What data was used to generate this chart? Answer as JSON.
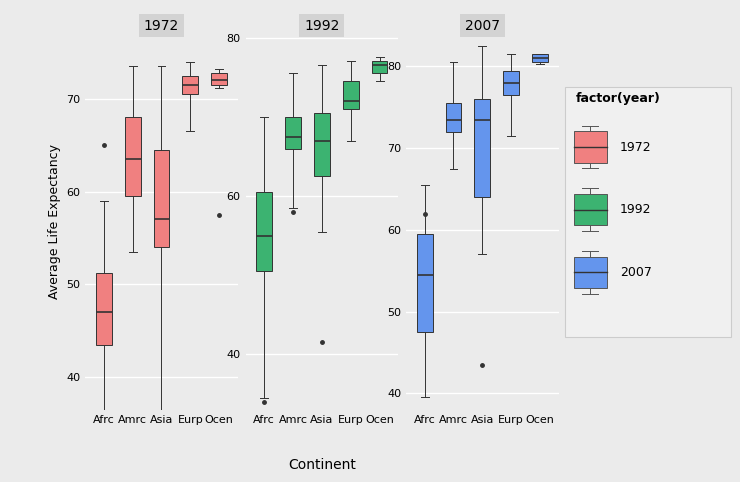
{
  "years": [
    "1972",
    "1992",
    "2007"
  ],
  "continents": [
    "Afrc",
    "Amrc",
    "Asia",
    "Eurp",
    "Ocen"
  ],
  "colors": {
    "1972": "#F08080",
    "1992": "#3CB371",
    "2007": "#6495ED"
  },
  "panel_bg": "#EBEBEB",
  "grid_color": "#FFFFFF",
  "title_bg": "#D3D3D3",
  "boxplot_data": {
    "1972": {
      "Afrc": {
        "q1": 43.5,
        "median": 47.0,
        "q3": 51.2,
        "whislo": 35.5,
        "whishi": 59.0,
        "fliers": [
          65.0
        ]
      },
      "Amrc": {
        "q1": 59.5,
        "median": 63.5,
        "q3": 68.0,
        "whislo": 53.5,
        "whishi": 73.5,
        "fliers": []
      },
      "Asia": {
        "q1": 54.0,
        "median": 57.0,
        "q3": 64.5,
        "whislo": 36.0,
        "whishi": 73.5,
        "fliers": []
      },
      "Eurp": {
        "q1": 70.5,
        "median": 71.5,
        "q3": 72.5,
        "whislo": 66.5,
        "whishi": 74.0,
        "fliers": []
      },
      "Ocen": {
        "q1": 71.5,
        "median": 72.0,
        "q3": 72.8,
        "whislo": 71.2,
        "whishi": 73.2,
        "fliers": [
          57.5
        ]
      }
    },
    "1992": {
      "Afrc": {
        "q1": 50.5,
        "median": 55.0,
        "q3": 60.5,
        "whislo": 34.5,
        "whishi": 70.0,
        "fliers": [
          34.0
        ]
      },
      "Amrc": {
        "q1": 66.0,
        "median": 67.5,
        "q3": 70.0,
        "whislo": 58.5,
        "whishi": 75.5,
        "fliers": [
          58.0
        ]
      },
      "Asia": {
        "q1": 62.5,
        "median": 67.0,
        "q3": 70.5,
        "whislo": 55.5,
        "whishi": 76.5,
        "fliers": [
          41.5
        ]
      },
      "Eurp": {
        "q1": 71.0,
        "median": 72.0,
        "q3": 74.5,
        "whislo": 67.0,
        "whishi": 77.0,
        "fliers": []
      },
      "Ocen": {
        "q1": 75.5,
        "median": 76.5,
        "q3": 77.0,
        "whislo": 74.5,
        "whishi": 77.5,
        "fliers": []
      }
    },
    "2007": {
      "Afrc": {
        "q1": 47.5,
        "median": 54.5,
        "q3": 59.5,
        "whislo": 39.5,
        "whishi": 65.5,
        "fliers": [
          62.0
        ]
      },
      "Amrc": {
        "q1": 72.0,
        "median": 73.5,
        "q3": 75.5,
        "whislo": 67.5,
        "whishi": 80.5,
        "fliers": []
      },
      "Asia": {
        "q1": 64.0,
        "median": 73.5,
        "q3": 76.0,
        "whislo": 57.0,
        "whishi": 82.5,
        "fliers": [
          43.5
        ]
      },
      "Eurp": {
        "q1": 76.5,
        "median": 78.0,
        "q3": 79.5,
        "whislo": 71.5,
        "whishi": 81.5,
        "fliers": []
      },
      "Ocen": {
        "q1": 80.5,
        "median": 81.0,
        "q3": 81.5,
        "whislo": 80.3,
        "whishi": 81.5,
        "fliers": []
      }
    }
  },
  "ylim_1972": [
    36.5,
    77.0
  ],
  "ylim_1992": [
    33.0,
    80.5
  ],
  "ylim_2007": [
    38.0,
    84.0
  ],
  "yticks_1972": [
    40,
    50,
    60,
    70
  ],
  "yticks_1992": [
    40,
    60,
    80
  ],
  "yticks_2007": [
    40,
    50,
    60,
    70,
    80
  ],
  "ylabel": "Average Life Expectancy",
  "xlabel": "Continent",
  "legend_title": "factor(year)",
  "legend_labels": [
    "1972",
    "1992",
    "2007"
  ]
}
